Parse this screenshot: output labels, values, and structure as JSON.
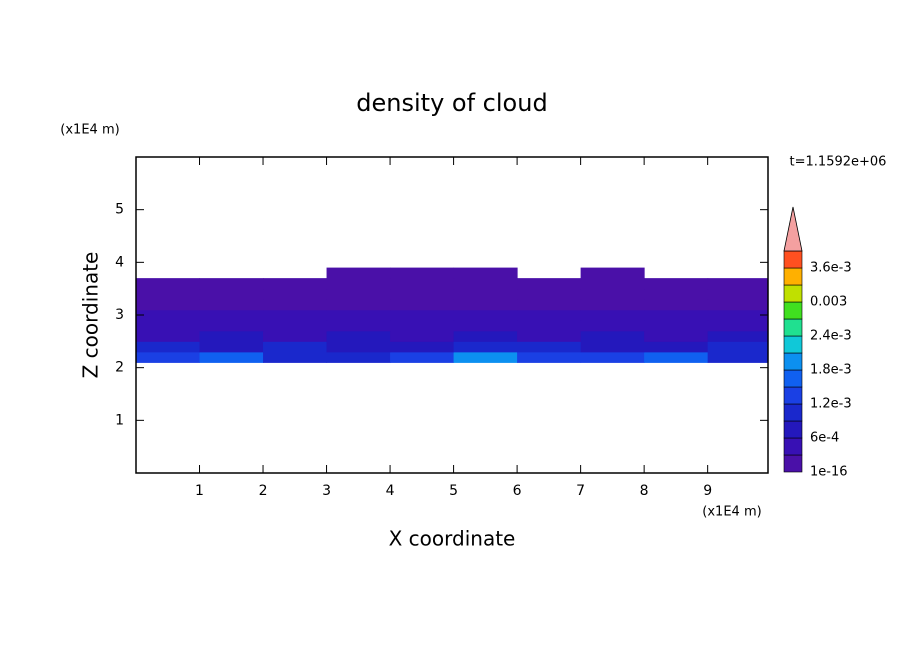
{
  "chart_data": {
    "type": "contour",
    "title": "density of cloud",
    "x_label": "X coordinate",
    "y_label": "Z coordinate",
    "x_unit": "(x1E4 m)",
    "y_unit": "(x1E4 m)",
    "annotation": "t=1.1592e+06",
    "xlim": [
      0,
      9.95
    ],
    "ylim": [
      0,
      6
    ],
    "xticks": [
      1,
      2,
      3,
      4,
      5,
      6,
      7,
      8,
      9
    ],
    "yticks": [
      1,
      2,
      3,
      4,
      5
    ],
    "x": [
      0.5,
      1.5,
      2.5,
      3.5,
      4.5,
      5.5,
      6.5,
      7.5,
      8.5,
      9.5
    ],
    "y": [
      2.2,
      2.4,
      2.6,
      2.8,
      3.0,
      3.2,
      3.4,
      3.6,
      3.8
    ],
    "z": [
      [
        0.0013,
        0.0016,
        0.0011,
        0.0009,
        0.0012,
        0.0019,
        0.0014,
        0.0012,
        0.0015,
        0.001
      ],
      [
        0.0009,
        0.0008,
        0.001,
        0.0007,
        0.0008,
        0.0009,
        0.0011,
        0.0008,
        0.0007,
        0.0009
      ],
      [
        0.0005,
        0.0006,
        0.0005,
        0.0006,
        0.0005,
        0.0006,
        0.0005,
        0.0006,
        0.0005,
        0.0006
      ],
      [
        0.0004,
        0.0004,
        0.0005,
        0.0004,
        0.0004,
        0.0004,
        0.0004,
        0.0005,
        0.0004,
        0.0004
      ],
      [
        0.0003,
        0.0004,
        0.0003,
        0.0003,
        0.0004,
        0.0003,
        0.0003,
        0.0003,
        0.0004,
        0.0003
      ],
      [
        0.0001,
        0.0002,
        0.0002,
        0.0002,
        0.0001,
        0.0002,
        0.0002,
        0.0002,
        0.0002,
        0.0001
      ],
      [
        0.0001,
        0.0001,
        0.0001,
        0.0001,
        0.0001,
        0.0001,
        0.0001,
        0.0001,
        0.0001,
        0.0001
      ],
      [
        0.0001,
        0.0001,
        0.0001,
        0.0001,
        0.0001,
        0.0001,
        0.0001,
        0.0001,
        0.0001,
        0.0001
      ],
      [
        null,
        null,
        null,
        0.0001,
        0.0001,
        0.0001,
        null,
        0.0001,
        null,
        null
      ]
    ],
    "colorbar": {
      "levels": [
        1e-16,
        0.0003,
        0.0006,
        0.0009,
        0.0012,
        0.0015,
        0.0018,
        0.0021,
        0.0024,
        0.0027,
        0.003,
        0.0033,
        0.0036,
        0.0039
      ],
      "colors": [
        "#4a10a8",
        "#3810b4",
        "#2418bc",
        "#1a28cc",
        "#1a40e4",
        "#1060f0",
        "#0c90f0",
        "#10c8d8",
        "#20e090",
        "#40e020",
        "#c0e000",
        "#ffb000",
        "#ff5020"
      ],
      "extend_color": "#f4a0a0",
      "ticks": [
        {
          "value": 1e-16,
          "label": "1e-16"
        },
        {
          "value": 0.0006,
          "label": "6e-4"
        },
        {
          "value": 0.0012,
          "label": "1.2e-3"
        },
        {
          "value": 0.0018,
          "label": "1.8e-3"
        },
        {
          "value": 0.0024,
          "label": "2.4e-3"
        },
        0.003,
        {
          "value": 0.0036,
          "label": "3.6e-3"
        }
      ]
    }
  }
}
